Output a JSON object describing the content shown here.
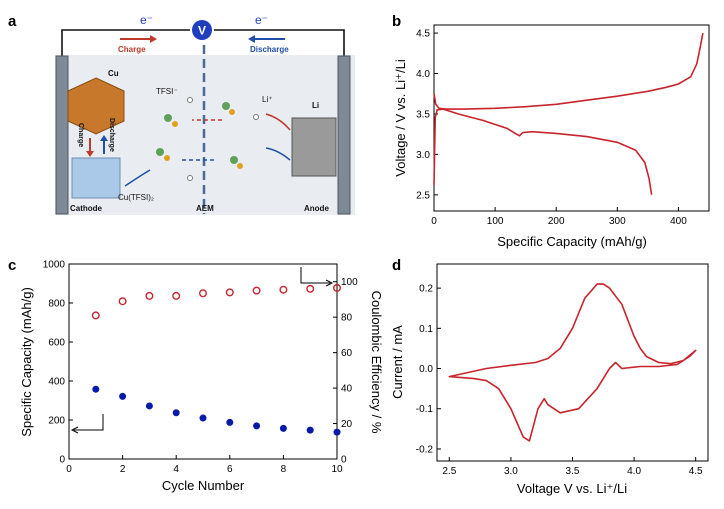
{
  "panel_labels": {
    "a": "a",
    "b": "b",
    "c": "c",
    "d": "d"
  },
  "schematic": {
    "electron_left": "e⁻",
    "electron_right": "e⁻",
    "voltmeter": "V",
    "charge_label": "Charge",
    "discharge_label": "Discharge",
    "cu_label": "Cu",
    "li_label": "Li",
    "tfsi_label": "TFSI⁻",
    "li_ion_label": "Li⁺",
    "side_charge": "Charge",
    "side_discharge": "Discharge",
    "cu_tfsi_label": "Cu(TFSI)₂",
    "cathode": "Cathode",
    "aem": "AEM",
    "anode": "Anode",
    "colors": {
      "charge": "#c0392b",
      "discharge": "#1f4fa8",
      "cu": "#c8782a",
      "li": "#9a9a9a",
      "cutfsi": "#aac8e8",
      "cell_bg": "#e9edf2"
    }
  },
  "chart_data": [
    {
      "panel": "b",
      "type": "line",
      "xlabel": "Specific Capacity (mAh/g)",
      "ylabel": "Voltage / V vs. Li⁺/Li",
      "xlim": [
        0,
        450
      ],
      "ylim": [
        2.3,
        4.6
      ],
      "xticks": [
        "0",
        "100",
        "200",
        "300",
        "400"
      ],
      "yticks": [
        "2.5",
        "3.0",
        "3.5",
        "4.0",
        "4.5"
      ],
      "color": "#c8242b",
      "series": [
        {
          "name": "charge",
          "x": [
            0,
            3,
            8,
            20,
            50,
            100,
            150,
            200,
            250,
            300,
            350,
            380,
            400,
            420,
            430,
            435,
            440
          ],
          "y": [
            3.75,
            3.62,
            3.57,
            3.56,
            3.56,
            3.57,
            3.59,
            3.62,
            3.67,
            3.72,
            3.78,
            3.83,
            3.87,
            3.96,
            4.12,
            4.3,
            4.5
          ]
        },
        {
          "name": "discharge",
          "x": [
            0,
            2,
            5,
            15,
            40,
            80,
            120,
            135,
            140,
            145,
            160,
            200,
            250,
            300,
            330,
            345,
            352,
            356
          ],
          "y": [
            2.62,
            3.45,
            3.55,
            3.56,
            3.5,
            3.42,
            3.32,
            3.25,
            3.23,
            3.27,
            3.28,
            3.26,
            3.22,
            3.15,
            3.05,
            2.9,
            2.7,
            2.5
          ]
        }
      ]
    },
    {
      "panel": "c",
      "type": "scatter",
      "xlabel": "Cycle Number",
      "ylabel": "Specific Capacity (mAh/g)",
      "y2label": "Coulombic Efficiency / %",
      "xlim": [
        0,
        10
      ],
      "ylim": [
        0,
        1000
      ],
      "y2lim": [
        0,
        110
      ],
      "xticks": [
        "0",
        "2",
        "4",
        "6",
        "8",
        "10"
      ],
      "yticks": [
        "0",
        "200",
        "400",
        "600",
        "800",
        "1000"
      ],
      "y2ticks": [
        "0",
        "20",
        "40",
        "60",
        "80",
        "100"
      ],
      "categories": [
        1,
        2,
        3,
        4,
        5,
        6,
        7,
        8,
        9,
        10
      ],
      "series": [
        {
          "name": "Specific Capacity",
          "axis": "left",
          "marker": "filled-circle",
          "color": "#0a1aa8",
          "values": [
            358,
            321,
            272,
            237,
            210,
            188,
            170,
            157,
            148,
            138
          ]
        },
        {
          "name": "Coulombic Efficiency",
          "axis": "right",
          "marker": "open-circle",
          "color": "#c8242b",
          "values": [
            81,
            89,
            92,
            92,
            93.5,
            94,
            95,
            95.5,
            96,
            96.5
          ]
        }
      ]
    },
    {
      "panel": "d",
      "type": "line",
      "xlabel": "Voltage V vs. Li⁺/Li",
      "ylabel": "Current / mA",
      "xlim": [
        2.4,
        4.6
      ],
      "ylim": [
        -0.23,
        0.26
      ],
      "xticks": [
        "2.5",
        "3.0",
        "3.5",
        "4.0",
        "4.5"
      ],
      "yticks": [
        "-0.2",
        "-0.1",
        "0.0",
        "0.1",
        "0.2"
      ],
      "color": "#c8242b",
      "series": [
        {
          "name": "cv_loop",
          "closed": true,
          "x": [
            2.5,
            2.8,
            3.0,
            3.2,
            3.3,
            3.4,
            3.5,
            3.6,
            3.7,
            3.75,
            3.8,
            3.9,
            4.0,
            4.05,
            4.1,
            4.2,
            4.3,
            4.4,
            4.5,
            4.45,
            4.35,
            4.2,
            4.05,
            3.9,
            3.85,
            3.8,
            3.7,
            3.55,
            3.4,
            3.3,
            3.27,
            3.22,
            3.15,
            3.1,
            3.0,
            2.9,
            2.8,
            2.7,
            2.5
          ],
          "y": [
            -0.02,
            0.0,
            0.008,
            0.015,
            0.025,
            0.05,
            0.1,
            0.175,
            0.21,
            0.21,
            0.2,
            0.16,
            0.08,
            0.05,
            0.03,
            0.015,
            0.012,
            0.02,
            0.045,
            0.03,
            0.01,
            0.005,
            0.005,
            0.0,
            0.015,
            0.0,
            -0.05,
            -0.1,
            -0.11,
            -0.09,
            -0.075,
            -0.1,
            -0.18,
            -0.17,
            -0.1,
            -0.05,
            -0.03,
            -0.025,
            -0.02
          ]
        }
      ]
    }
  ]
}
